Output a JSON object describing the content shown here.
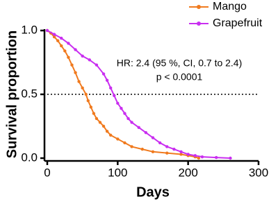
{
  "chart_data": {
    "type": "line",
    "x_label": "Days",
    "y_label": "Survival proportion",
    "annotations": [
      "HR: 2.4 (95 %, CI, 0.7 to 2.4)",
      "p < 0.0001"
    ],
    "reference_line": 0.5,
    "xlim": [
      0,
      300
    ],
    "xticks": [
      0,
      100,
      200,
      300
    ],
    "ylim": [
      0,
      1
    ],
    "yticks": [
      {
        "value": 0,
        "label": "0.0"
      },
      {
        "value": 0.5,
        "label": "0.5"
      },
      {
        "value": 1,
        "label": "1.0"
      }
    ],
    "legend": "top-right",
    "series": [
      {
        "name": "Mango",
        "color": "#f07a1e",
        "x": [
          0,
          5,
          10,
          15,
          20,
          25,
          30,
          35,
          40,
          45,
          50,
          55,
          58,
          62,
          66,
          70,
          75,
          80,
          85,
          90,
          100,
          110,
          120,
          135,
          150,
          170,
          190,
          200,
          210,
          215
        ],
        "values": [
          1,
          0.98,
          0.95,
          0.92,
          0.88,
          0.84,
          0.79,
          0.73,
          0.67,
          0.6,
          0.55,
          0.5,
          0.45,
          0.4,
          0.35,
          0.31,
          0.28,
          0.25,
          0.21,
          0.18,
          0.15,
          0.12,
          0.09,
          0.07,
          0.05,
          0.04,
          0.03,
          0.02,
          0.01,
          0
        ]
      },
      {
        "name": "Grapefruit",
        "color": "#c92ef0",
        "x": [
          0,
          10,
          20,
          30,
          40,
          50,
          60,
          70,
          80,
          85,
          90,
          95,
          100,
          105,
          110,
          115,
          120,
          130,
          140,
          150,
          160,
          170,
          180,
          190,
          200,
          210,
          220,
          240,
          260
        ],
        "values": [
          1,
          0.97,
          0.94,
          0.9,
          0.85,
          0.8,
          0.77,
          0.73,
          0.66,
          0.61,
          0.55,
          0.49,
          0.43,
          0.39,
          0.35,
          0.31,
          0.28,
          0.24,
          0.2,
          0.16,
          0.12,
          0.09,
          0.07,
          0.05,
          0.03,
          0.02,
          0.01,
          0.005,
          0
        ]
      }
    ]
  }
}
